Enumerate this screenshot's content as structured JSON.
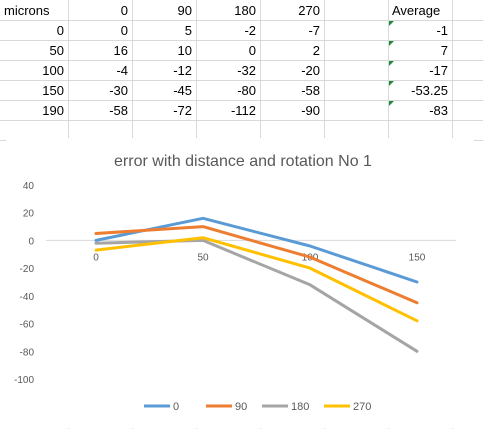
{
  "sheet": {
    "headers": [
      "microns",
      "0",
      "90",
      "180",
      "270",
      "Average"
    ],
    "rows": [
      {
        "microns": "0",
        "v0": "0",
        "v90": "5",
        "v180": "-2",
        "v270": "-7",
        "avg": "-1"
      },
      {
        "microns": "50",
        "v0": "16",
        "v90": "10",
        "v180": "0",
        "v270": "2",
        "avg": "7"
      },
      {
        "microns": "100",
        "v0": "-4",
        "v90": "-12",
        "v180": "-32",
        "v270": "-20",
        "avg": "-17"
      },
      {
        "microns": "150",
        "v0": "-30",
        "v90": "-45",
        "v180": "-80",
        "v270": "-58",
        "avg": "-53.25"
      },
      {
        "microns": "190",
        "v0": "-58",
        "v90": "-72",
        "v180": "-112",
        "v270": "-90",
        "avg": "-83"
      }
    ]
  },
  "chart_data": {
    "type": "line",
    "title": "error with distance and rotation No 1",
    "xlabel": "",
    "ylabel": "",
    "categories": [
      "0",
      "50",
      "100",
      "150"
    ],
    "ylim": [
      -100,
      40
    ],
    "yticks": [
      40,
      20,
      0,
      -20,
      -40,
      -60,
      -80,
      -100
    ],
    "grid": false,
    "legend": "bottom",
    "series": [
      {
        "name": "0",
        "values": [
          0,
          16,
          -4,
          -30
        ],
        "color": "#5b9bd5"
      },
      {
        "name": "90",
        "values": [
          5,
          10,
          -12,
          -45
        ],
        "color": "#ed7d31"
      },
      {
        "name": "180",
        "values": [
          -2,
          0,
          -32,
          -80
        ],
        "color": "#a5a5a5"
      },
      {
        "name": "270",
        "values": [
          -7,
          2,
          -20,
          -58
        ],
        "color": "#ffc000"
      }
    ]
  }
}
